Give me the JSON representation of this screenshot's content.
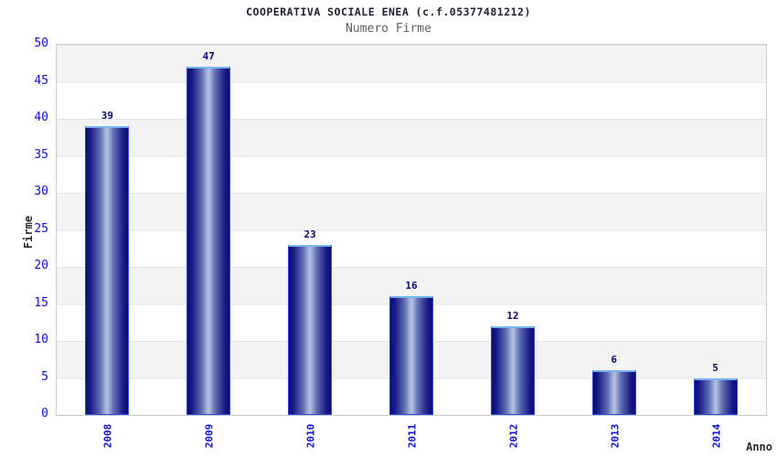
{
  "chart_data": {
    "type": "bar",
    "title": "COOPERATIVA SOCIALE ENEA (c.f.05377481212)",
    "subtitle": "Numero Firme",
    "xlabel": "Anno",
    "ylabel": "Firme",
    "categories": [
      "2008",
      "2009",
      "2010",
      "2011",
      "2012",
      "2013",
      "2014"
    ],
    "values": [
      39,
      47,
      23,
      16,
      12,
      6,
      5
    ],
    "ylim": [
      0,
      50
    ],
    "yticks": [
      0,
      5,
      10,
      15,
      20,
      25,
      30,
      35,
      40,
      45,
      50
    ],
    "grid": "horizontal-bands-every-5",
    "legend": "none",
    "bar_value_labels_shown": true,
    "x_tick_rotation_degrees": -90,
    "colors": {
      "tick_label": "#0e0ed2",
      "value_label": "#0b0b6e",
      "title_color": "#212135",
      "subtitle_color": "#5f5f5f",
      "axis_title_color": "#2b2b2b",
      "bar_edge": "#0d0d70",
      "bar_center": "#b0bcde",
      "bar_border": "#2e48d8",
      "bar_border_top": "#7ab2ee",
      "band_gray": "#f3f3f3",
      "band_white": "#ffffff",
      "grid_line": "#e3e3e3",
      "plot_border": "#cccccc"
    }
  }
}
